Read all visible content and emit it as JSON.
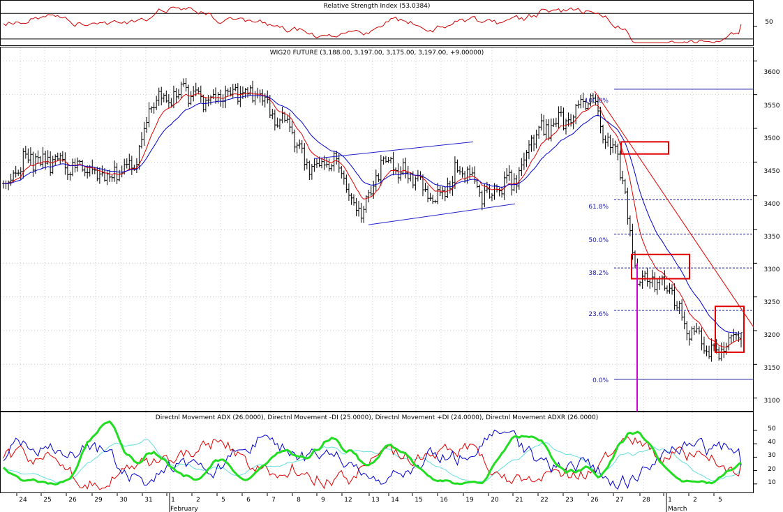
{
  "colors": {
    "rsi": "#cc0000",
    "price_bars": "#000000",
    "ma_fast": "#e00000",
    "ma_slow": "#0000cc",
    "fib": "#1a1aa0",
    "channel": "#2020cc",
    "box": "#e00000",
    "marker": "#d000d0",
    "adx": "#22dd22",
    "adxr": "#66dddd",
    "minus_di": "#dd0000",
    "plus_di": "#0000cc",
    "grid": "#cccccc"
  },
  "chart_data": [
    {
      "type": "line",
      "title": "Relative Strength Index (53.0384)",
      "yticks": [
        "50"
      ],
      "reference_lines": [
        30,
        70
      ],
      "series": [
        {
          "name": "Relative Strength Index",
          "last": 53.0384
        }
      ]
    },
    {
      "type": "ohlc",
      "title": "WIG20 FUTURE (3,188.00, 3,197.00, 3,175.00, 3,197.00, +9.00000)",
      "last_bar": {
        "open": 3188.0,
        "high": 3197.0,
        "low": 3175.0,
        "close": 3197.0,
        "change": 9.0
      },
      "ylim": [
        3080,
        3620
      ],
      "yticks": [
        "3600",
        "3550",
        "3500",
        "3450",
        "3400",
        "3350",
        "3300",
        "3250",
        "3200",
        "3150",
        "3100"
      ],
      "grid": true,
      "categories": [
        "24",
        "25",
        "26",
        "29",
        "30",
        "31",
        "1",
        "2",
        "5",
        "6",
        "7",
        "8",
        "9",
        "12",
        "13",
        "14",
        "15",
        "16",
        "19",
        "20",
        "21",
        "22",
        "23",
        "26",
        "27",
        "28",
        "1",
        "2",
        "5"
      ],
      "month_labels": [
        {
          "label": "February",
          "at": "1"
        },
        {
          "label": "March",
          "at": "1"
        }
      ],
      "close_anchors": [
        3420,
        3455,
        3450,
        3440,
        3430,
        3440,
        3545,
        3555,
        3540,
        3555,
        3545,
        3510,
        3445,
        3450,
        3375,
        3450,
        3430,
        3395,
        3440,
        3400,
        3420,
        3495,
        3510,
        3540,
        3470,
        3280,
        3270,
        3195,
        3165,
        3197
      ],
      "fibonacci_levels": [
        {
          "label": "100.0%",
          "value": 3558
        },
        {
          "label": "61.8%",
          "value": 3394
        },
        {
          "label": "50.0%",
          "value": 3343
        },
        {
          "label": "38.2%",
          "value": 3293
        },
        {
          "label": "23.6%",
          "value": 3230
        },
        {
          "label": "0.0%",
          "value": 3128
        }
      ]
    },
    {
      "type": "line",
      "title": "Directnl Movement ADX (26.0000), Directnl Movement -DI (25.0000), Directnl Movement +DI (24.0000), Directnl Movement ADXR (26.0000)",
      "ylim": [
        0,
        60
      ],
      "yticks": [
        "50",
        "40",
        "30",
        "20",
        "10"
      ],
      "series": [
        {
          "name": "Directnl Movement ADX",
          "last": 26.0
        },
        {
          "name": "Directnl Movement -DI",
          "last": 25.0
        },
        {
          "name": "Directnl Movement +DI",
          "last": 24.0
        },
        {
          "name": "Directnl Movement ADXR",
          "last": 26.0
        }
      ]
    }
  ]
}
